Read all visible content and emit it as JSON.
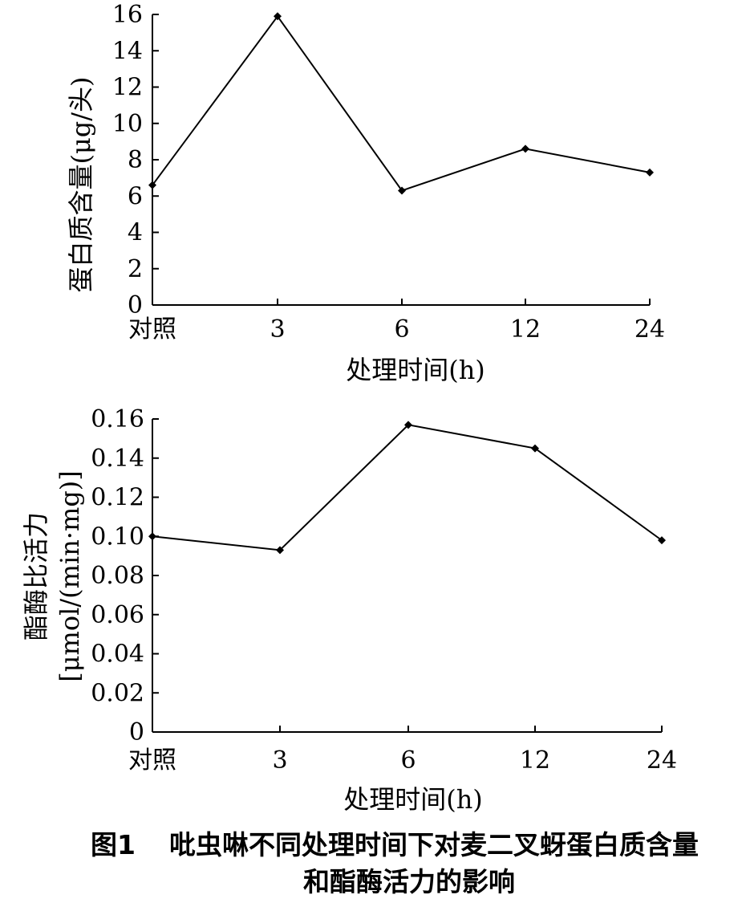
{
  "figure": {
    "caption_label": "图1",
    "caption_line1": "吡虫啉不同处理时间下对麦二叉蚜蛋白质含量",
    "caption_line2": "和酯酶活力的影响"
  },
  "chart_data": [
    {
      "type": "line",
      "categories": [
        "对照",
        "3",
        "6",
        "12",
        "24"
      ],
      "series": [
        {
          "values": [
            6.6,
            15.9,
            6.3,
            8.6,
            7.3
          ]
        }
      ],
      "xlabel": "处理时间(h)",
      "ylabel": "蛋白质含量(μg/头)",
      "ylim": [
        0,
        16
      ],
      "yticks": [
        "0",
        "2",
        "4",
        "6",
        "8",
        "10",
        "12",
        "14",
        "16"
      ],
      "grid": false,
      "marker": "diamond",
      "line_color": "#000000"
    },
    {
      "type": "line",
      "categories": [
        "对照",
        "3",
        "6",
        "12",
        "24"
      ],
      "series": [
        {
          "values": [
            0.1,
            0.093,
            0.157,
            0.145,
            0.098
          ]
        }
      ],
      "xlabel": "处理时间(h)",
      "ylabel_line1": "酯酶比活力",
      "ylabel_line2": "[μmol/(min·mg)]",
      "ylim": [
        0,
        0.16
      ],
      "yticks": [
        "0",
        "0.02",
        "0.04",
        "0.06",
        "0.08",
        "0.10",
        "0.12",
        "0.14",
        "0.16"
      ],
      "grid": false,
      "marker": "diamond",
      "line_color": "#000000"
    }
  ]
}
